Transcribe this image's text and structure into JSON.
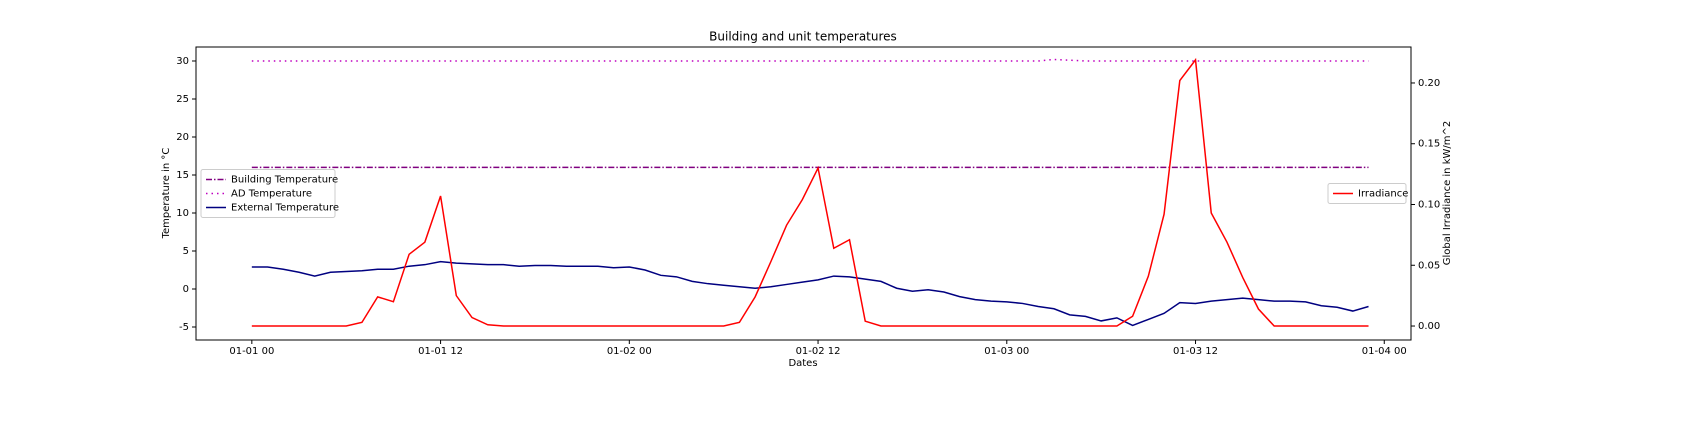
{
  "chart_data": {
    "type": "line",
    "title": "Building and unit temperatures",
    "xlabel": "Dates",
    "ylabel": "Temperature in °C",
    "y2label": "Global Irradiance in kW/m^2",
    "x": [
      0,
      1,
      2,
      3,
      4,
      5,
      6,
      7,
      8,
      9,
      10,
      11,
      12,
      13,
      14,
      15,
      16,
      17,
      18,
      19,
      20,
      21,
      22,
      23,
      24,
      25,
      26,
      27,
      28,
      29,
      30,
      31,
      32,
      33,
      34,
      35,
      36,
      37,
      38,
      39,
      40,
      41,
      42,
      43,
      44,
      45,
      46,
      47,
      48,
      49,
      50,
      51,
      52,
      53,
      54,
      55,
      56,
      57,
      58,
      59,
      60,
      61,
      62,
      63,
      64,
      65,
      66,
      67,
      68,
      69,
      70,
      71
    ],
    "xlim": [
      -3.55,
      73.7
    ],
    "xticks": [
      {
        "value": 0,
        "label": "01-01 00"
      },
      {
        "value": 12,
        "label": "01-01 12"
      },
      {
        "value": 24,
        "label": "01-02 00"
      },
      {
        "value": 36,
        "label": "01-02 12"
      },
      {
        "value": 48,
        "label": "01-03 00"
      },
      {
        "value": 60,
        "label": "01-03 12"
      },
      {
        "value": 72,
        "label": "01-04 00"
      }
    ],
    "ylim": [
      -6.71,
      31.84
    ],
    "yticks": [
      -5,
      0,
      5,
      10,
      15,
      20,
      25,
      30
    ],
    "y2lim": [
      -0.0115,
      0.2296
    ],
    "y2ticks": [
      {
        "value": 0,
        "label": "0.00"
      },
      0.05,
      {
        "value": 0.1,
        "label": "0.10"
      },
      0.15,
      {
        "value": 0.2,
        "label": "0.20"
      }
    ],
    "legend": "center left",
    "legend2": "center right",
    "series": [
      {
        "name": "Building Temperature",
        "color": "#800080",
        "linestyle": "dashdot",
        "values": [
          16,
          16,
          16,
          16,
          16,
          16,
          16,
          16,
          16,
          16,
          16,
          16,
          16,
          16,
          16,
          16,
          16,
          16,
          16,
          16,
          16,
          16,
          16,
          16,
          16,
          16,
          16,
          16,
          16,
          16,
          16,
          16,
          16,
          16,
          16,
          16,
          16,
          16,
          16,
          16,
          16,
          16,
          16,
          16,
          16,
          16,
          16,
          16,
          16,
          16,
          16,
          16,
          16,
          16,
          16,
          16,
          16,
          16,
          16,
          16,
          16,
          16,
          16,
          16,
          16,
          16,
          16,
          16,
          16,
          16,
          16,
          16
        ]
      },
      {
        "name": "AD Temperature",
        "color": "#bf00bf",
        "linestyle": "dotted",
        "values": [
          30,
          30,
          30,
          30,
          30,
          30,
          30,
          30,
          30,
          30,
          30,
          30,
          30,
          30,
          30,
          30,
          30,
          30,
          30,
          30,
          30,
          30,
          30,
          30,
          30,
          30,
          30,
          30,
          30,
          30,
          30,
          30,
          30,
          30,
          30,
          30,
          30,
          30,
          30,
          30,
          30,
          30,
          30,
          30,
          30,
          30,
          30,
          30,
          30,
          30,
          30,
          30.2,
          30.1,
          30,
          30,
          30,
          30,
          30,
          30,
          30,
          30,
          30,
          30,
          30,
          30,
          30,
          30,
          30,
          30,
          30,
          30,
          30
        ]
      },
      {
        "name": "External Temperature",
        "color": "#000080",
        "linestyle": "solid",
        "values": [
          2.9,
          2.9,
          2.6,
          2.2,
          1.7,
          2.2,
          2.3,
          2.4,
          2.6,
          2.6,
          3.0,
          3.2,
          3.6,
          3.4,
          3.3,
          3.2,
          3.2,
          3.0,
          3.1,
          3.1,
          3.0,
          3.0,
          3.0,
          2.8,
          2.9,
          2.5,
          1.8,
          1.6,
          1.0,
          0.7,
          0.5,
          0.3,
          0.1,
          0.3,
          0.6,
          0.9,
          1.2,
          1.7,
          1.6,
          1.3,
          1.0,
          0.1,
          -0.3,
          -0.1,
          -0.4,
          -1.0,
          -1.4,
          -1.6,
          -1.7,
          -1.9,
          -2.3,
          -2.6,
          -3.4,
          -3.6,
          -4.2,
          -3.8,
          -4.8,
          -4.0,
          -3.2,
          -1.8,
          -1.9,
          -1.6,
          -1.4,
          -1.2,
          -1.4,
          -1.6,
          -1.6,
          -1.7,
          -2.2,
          -2.4,
          -2.9,
          -2.3
        ]
      },
      {
        "name": "Irradiance",
        "color": "#ff0000",
        "linestyle": "solid",
        "axis": "y2",
        "values": [
          0,
          0,
          0,
          0,
          0,
          0,
          0,
          0.003,
          0.024,
          0.02,
          0.059,
          0.069,
          0.107,
          0.025,
          0.007,
          0.001,
          0,
          0,
          0,
          0,
          0,
          0,
          0,
          0,
          0,
          0,
          0,
          0,
          0,
          0,
          0,
          0.003,
          0.024,
          0.053,
          0.083,
          0.104,
          0.13,
          0.064,
          0.071,
          0.004,
          0,
          0,
          0,
          0,
          0,
          0,
          0,
          0,
          0,
          0,
          0,
          0,
          0,
          0,
          0,
          0,
          0.008,
          0.041,
          0.092,
          0.202,
          0.219,
          0.093,
          0.069,
          0.04,
          0.014,
          0,
          0,
          0,
          0,
          0,
          0,
          0
        ]
      }
    ]
  }
}
